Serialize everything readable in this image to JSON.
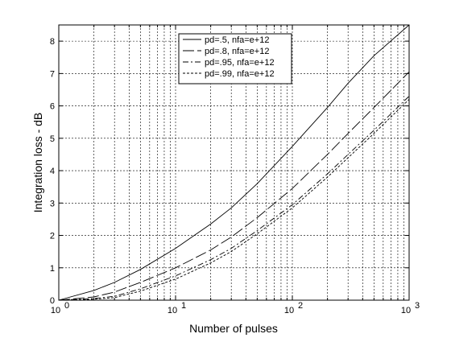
{
  "chart_data": {
    "type": "line",
    "title": "",
    "xlabel": "Number of pulses",
    "ylabel": "Integration loss - dB",
    "xscale": "log",
    "xlim": [
      1,
      1000
    ],
    "ylim": [
      0,
      8.5
    ],
    "x_ticks": [
      {
        "value": 1,
        "base": "10",
        "exp": "0"
      },
      {
        "value": 10,
        "base": "10",
        "exp": "1"
      },
      {
        "value": 100,
        "base": "10",
        "exp": "2"
      },
      {
        "value": 1000,
        "base": "10",
        "exp": "3"
      }
    ],
    "y_ticks": [
      "0",
      "1",
      "2",
      "3",
      "4",
      "5",
      "6",
      "7",
      "8"
    ],
    "grid": true,
    "legend_position": "top-center",
    "series": [
      {
        "name": "pd=.5, nfa=e+12",
        "style": "solid",
        "x": [
          1,
          2,
          3,
          5,
          10,
          20,
          30,
          50,
          100,
          200,
          300,
          500,
          1000
        ],
        "y": [
          0,
          0.3,
          0.55,
          0.95,
          1.6,
          2.35,
          2.85,
          3.6,
          4.75,
          5.95,
          6.7,
          7.55,
          8.5
        ]
      },
      {
        "name": "pd=.8, nfa=e+12",
        "style": "longdash",
        "x": [
          1,
          2,
          3,
          5,
          10,
          20,
          30,
          50,
          100,
          200,
          300,
          500,
          1000
        ],
        "y": [
          0,
          0.1,
          0.25,
          0.55,
          1.0,
          1.55,
          1.95,
          2.55,
          3.45,
          4.5,
          5.15,
          5.95,
          7.05
        ]
      },
      {
        "name": "pd=.95, nfa=e+12",
        "style": "dashdot",
        "x": [
          1,
          2,
          3,
          5,
          10,
          20,
          30,
          50,
          100,
          200,
          300,
          500,
          1000
        ],
        "y": [
          0,
          0.05,
          0.12,
          0.35,
          0.75,
          1.25,
          1.6,
          2.15,
          2.95,
          3.9,
          4.5,
          5.25,
          6.3
        ]
      },
      {
        "name": "pd=.99, nfa=e+12",
        "style": "dotted",
        "x": [
          1,
          2,
          3,
          5,
          10,
          20,
          30,
          50,
          100,
          200,
          300,
          500,
          1000
        ],
        "y": [
          0,
          0.03,
          0.08,
          0.28,
          0.65,
          1.15,
          1.5,
          2.05,
          2.85,
          3.8,
          4.4,
          5.15,
          6.2
        ]
      }
    ]
  }
}
